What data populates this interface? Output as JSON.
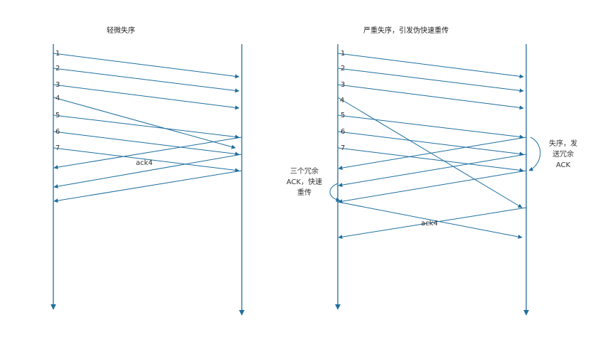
{
  "left_panel": {
    "title": "轻微失序",
    "labels": [
      "1",
      "2",
      "3",
      "4",
      "5",
      "6",
      "7"
    ],
    "ack_label": "ack4"
  },
  "right_panel": {
    "title": "严重失序，引发伪快速重传",
    "labels": [
      "1",
      "2",
      "3",
      "4",
      "5",
      "6",
      "7"
    ],
    "ack_label": "ack4",
    "note_receiver": [
      "失序，发",
      "送冗余",
      "ACK"
    ],
    "note_sender": [
      "三个冗余",
      "ACK，快速",
      "重传"
    ]
  },
  "colors": {
    "line": "#1f6f9f",
    "text": "#333333"
  }
}
